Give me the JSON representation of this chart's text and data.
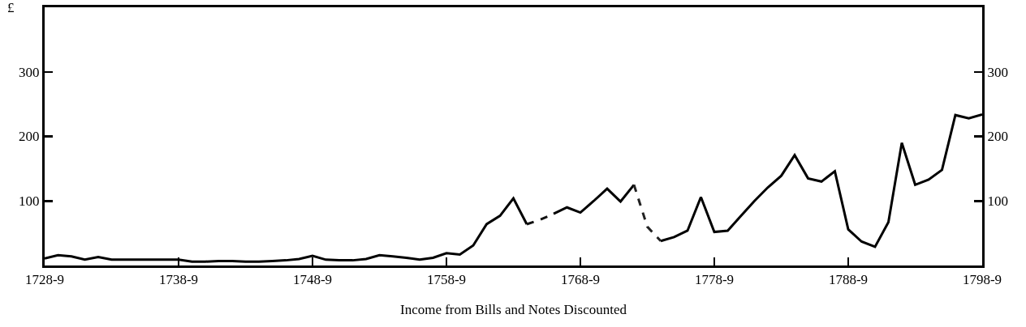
{
  "chart_data": {
    "type": "line",
    "xlabel": "Income from Bills and Notes Discounted",
    "ylabel": "£",
    "categories": [
      "1728-9",
      null,
      null,
      null,
      null,
      null,
      null,
      null,
      null,
      null,
      "1738-9",
      null,
      null,
      null,
      null,
      null,
      null,
      null,
      null,
      null,
      "1748-9",
      null,
      null,
      null,
      null,
      null,
      null,
      null,
      null,
      null,
      "1758-9",
      null,
      null,
      null,
      null,
      null,
      null,
      null,
      null,
      null,
      "1768-9",
      null,
      null,
      null,
      null,
      null,
      null,
      null,
      null,
      null,
      "1778-9",
      null,
      null,
      null,
      null,
      null,
      null,
      null,
      null,
      null,
      "1788-9",
      null,
      null,
      null,
      null,
      null,
      null,
      null,
      null,
      null,
      "1798-9"
    ],
    "series": [
      {
        "color": "#000000",
        "line_style": "solid",
        "values": [
          11,
          16,
          14,
          9,
          13,
          9,
          9,
          9,
          9,
          9,
          9,
          6,
          6,
          7,
          7,
          6,
          6,
          7,
          8,
          10,
          15,
          9,
          8,
          8,
          10,
          16,
          14,
          12,
          9,
          12,
          19,
          17,
          31,
          64,
          77,
          104,
          64,
          null,
          80,
          90,
          82,
          100,
          119,
          99,
          125,
          null,
          38,
          44,
          54,
          106,
          52,
          54,
          77,
          100,
          121,
          139,
          171,
          135,
          130,
          146,
          56,
          37,
          29,
          67,
          190,
          125,
          133,
          148,
          233,
          228,
          234
        ]
      },
      {
        "color": "#111111",
        "line_style": "dashed",
        "values": [
          null,
          null,
          null,
          null,
          null,
          null,
          null,
          null,
          null,
          null,
          null,
          null,
          null,
          null,
          null,
          null,
          null,
          null,
          null,
          null,
          null,
          null,
          null,
          null,
          null,
          null,
          null,
          null,
          null,
          null,
          null,
          null,
          null,
          null,
          null,
          null,
          64,
          71,
          80,
          null,
          null,
          null,
          null,
          null,
          null,
          null,
          null,
          null,
          null,
          null,
          null,
          null,
          null,
          null,
          null,
          null,
          null,
          null,
          null,
          null,
          null,
          null,
          null,
          null,
          null,
          null,
          null,
          null,
          null,
          null,
          null
        ]
      },
      {
        "color": "#222222",
        "line_style": "dashed",
        "values": [
          null,
          null,
          null,
          null,
          null,
          null,
          null,
          null,
          null,
          null,
          null,
          null,
          null,
          null,
          null,
          null,
          null,
          null,
          null,
          null,
          null,
          null,
          null,
          null,
          null,
          null,
          null,
          null,
          null,
          null,
          null,
          null,
          null,
          null,
          null,
          null,
          null,
          null,
          null,
          null,
          null,
          null,
          null,
          null,
          125,
          60,
          38,
          null,
          null,
          null,
          null,
          null,
          null,
          null,
          null,
          null,
          null,
          null,
          null,
          null,
          null,
          null,
          null,
          null,
          null,
          null,
          null,
          null,
          null,
          null,
          null
        ]
      }
    ],
    "ylim": [
      0,
      400
    ],
    "yticks": [
      100,
      200,
      300
    ],
    "y2lim": [
      0,
      400
    ],
    "y2ticks": [
      100,
      200,
      300
    ],
    "grid": false
  }
}
